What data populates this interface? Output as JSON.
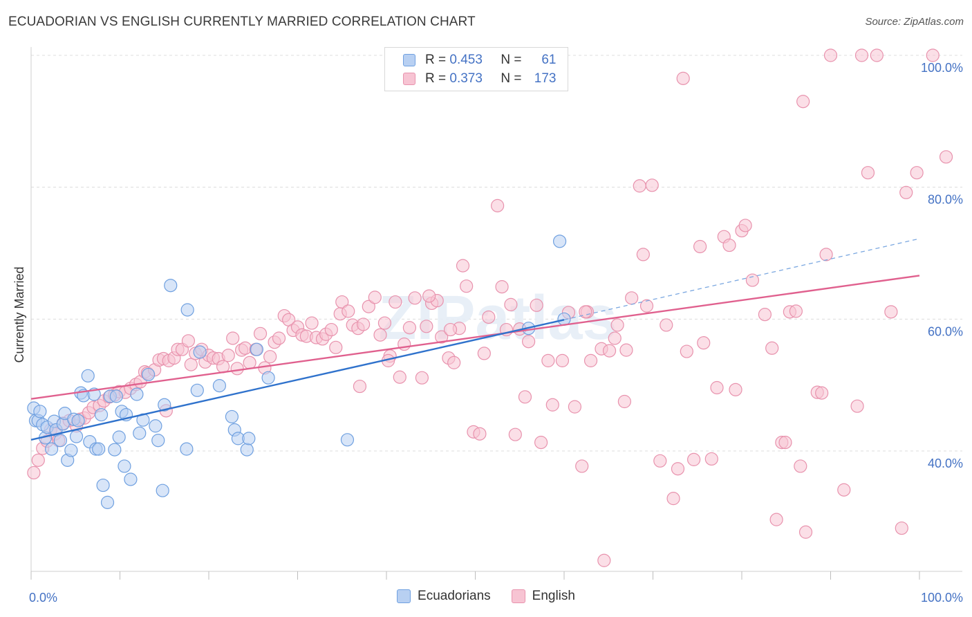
{
  "title": "ECUADORIAN VS ENGLISH CURRENTLY MARRIED CORRELATION CHART",
  "source": "Source: ZipAtlas.com",
  "watermark": "ZIPatlas",
  "legend": {
    "rows": [
      {
        "r_label": "R =",
        "r_value": "0.453",
        "n_label": "N =",
        "n_value": "61"
      },
      {
        "r_label": "R =",
        "r_value": "0.373",
        "n_label": "N =",
        "n_value": "173"
      }
    ]
  },
  "bottom_legend": [
    "Ecuadorians",
    "English"
  ],
  "chart_data": {
    "type": "scatter",
    "title": "ECUADORIAN VS ENGLISH CURRENTLY MARRIED CORRELATION CHART",
    "xlabel": "",
    "ylabel": "Currently Married",
    "xlim": [
      0,
      100
    ],
    "ylim": [
      20,
      102
    ],
    "x_tick_labels": [
      "0.0%",
      "100.0%"
    ],
    "y_ticks": [
      40,
      60,
      80,
      100
    ],
    "y_tick_labels": [
      "40.0%",
      "60.0%",
      "80.0%",
      "100.0%"
    ],
    "grid": true,
    "legend_position": "top-center",
    "series": [
      {
        "name": "Ecuadorians",
        "color": "#6fa0e0",
        "fill": "#b8d0f2",
        "trend": {
          "x": [
            0,
            60
          ],
          "y": [
            41.7,
            59.9
          ],
          "dashed_to": null
        },
        "points": [
          [
            0.3,
            46.5
          ],
          [
            0.5,
            44.6
          ],
          [
            0.8,
            44.6
          ],
          [
            1.0,
            46.0
          ],
          [
            1.3,
            44.0
          ],
          [
            1.6,
            42.0
          ],
          [
            1.8,
            43.6
          ],
          [
            2.3,
            40.3
          ],
          [
            2.6,
            44.5
          ],
          [
            2.8,
            43.2
          ],
          [
            3.3,
            41.6
          ],
          [
            3.6,
            44.1
          ],
          [
            3.8,
            45.7
          ],
          [
            4.1,
            38.6
          ],
          [
            4.5,
            40.1
          ],
          [
            4.8,
            44.8
          ],
          [
            5.1,
            42.2
          ],
          [
            5.3,
            44.6
          ],
          [
            5.6,
            48.8
          ],
          [
            5.9,
            48.4
          ],
          [
            6.4,
            51.4
          ],
          [
            6.6,
            41.4
          ],
          [
            7.1,
            48.6
          ],
          [
            7.3,
            40.3
          ],
          [
            7.6,
            40.3
          ],
          [
            7.9,
            45.5
          ],
          [
            8.1,
            34.8
          ],
          [
            8.6,
            32.2
          ],
          [
            8.9,
            48.3
          ],
          [
            9.4,
            40.2
          ],
          [
            9.6,
            48.3
          ],
          [
            9.9,
            42.1
          ],
          [
            10.2,
            46.0
          ],
          [
            10.5,
            37.7
          ],
          [
            10.7,
            45.5
          ],
          [
            11.2,
            35.7
          ],
          [
            11.9,
            48.6
          ],
          [
            12.2,
            42.7
          ],
          [
            12.6,
            44.7
          ],
          [
            13.2,
            51.6
          ],
          [
            14.0,
            43.8
          ],
          [
            14.3,
            41.6
          ],
          [
            14.8,
            34.0
          ],
          [
            15.0,
            47.0
          ],
          [
            15.7,
            65.1
          ],
          [
            17.5,
            40.3
          ],
          [
            17.6,
            61.4
          ],
          [
            18.7,
            49.2
          ],
          [
            19.0,
            55.0
          ],
          [
            21.2,
            49.9
          ],
          [
            22.6,
            45.2
          ],
          [
            22.9,
            43.2
          ],
          [
            23.3,
            41.9
          ],
          [
            24.3,
            40.2
          ],
          [
            24.5,
            41.9
          ],
          [
            25.4,
            55.4
          ],
          [
            26.7,
            51.1
          ],
          [
            35.6,
            41.7
          ],
          [
            59.5,
            71.8
          ],
          [
            60.0,
            60.0
          ],
          [
            56.0,
            58.6
          ]
        ]
      },
      {
        "name": "English",
        "color": "#e892ad",
        "fill": "#f7c4d3",
        "trend": {
          "x": [
            0,
            100
          ],
          "y": [
            47.9,
            66.6
          ],
          "dashed_to": null
        },
        "dashed_trend": {
          "x": [
            60,
            100
          ],
          "y": [
            59.9,
            72.2
          ]
        },
        "points": [
          [
            0.3,
            36.7
          ],
          [
            0.8,
            38.6
          ],
          [
            1.3,
            40.4
          ],
          [
            1.8,
            41.5
          ],
          [
            2.2,
            43.2
          ],
          [
            2.7,
            42.6
          ],
          [
            3.1,
            41.6
          ],
          [
            3.6,
            44.2
          ],
          [
            4.3,
            44.6
          ],
          [
            5.1,
            43.8
          ],
          [
            5.5,
            44.8
          ],
          [
            6.0,
            45.0
          ],
          [
            6.5,
            45.8
          ],
          [
            7.0,
            46.6
          ],
          [
            7.7,
            46.9
          ],
          [
            8.2,
            47.6
          ],
          [
            8.8,
            48.2
          ],
          [
            9.4,
            48.5
          ],
          [
            9.9,
            49.0
          ],
          [
            10.6,
            48.9
          ],
          [
            11.2,
            49.5
          ],
          [
            11.8,
            50.1
          ],
          [
            12.3,
            50.5
          ],
          [
            12.8,
            52.0
          ],
          [
            13.1,
            51.8
          ],
          [
            13.9,
            52.3
          ],
          [
            14.4,
            53.8
          ],
          [
            14.9,
            54.0
          ],
          [
            15.5,
            53.7
          ],
          [
            16.1,
            54.1
          ],
          [
            16.5,
            55.4
          ],
          [
            17.0,
            55.4
          ],
          [
            17.7,
            56.7
          ],
          [
            18.0,
            53.1
          ],
          [
            18.5,
            54.8
          ],
          [
            19.2,
            55.4
          ],
          [
            19.6,
            53.5
          ],
          [
            20.0,
            54.5
          ],
          [
            20.5,
            54.1
          ],
          [
            21.1,
            54.0
          ],
          [
            21.6,
            52.8
          ],
          [
            22.2,
            54.5
          ],
          [
            22.7,
            57.1
          ],
          [
            23.2,
            52.5
          ],
          [
            23.7,
            55.3
          ],
          [
            24.1,
            55.6
          ],
          [
            24.6,
            53.4
          ],
          [
            25.3,
            55.4
          ],
          [
            25.8,
            57.8
          ],
          [
            26.3,
            52.6
          ],
          [
            26.9,
            54.3
          ],
          [
            27.4,
            56.5
          ],
          [
            27.9,
            57.1
          ],
          [
            28.5,
            60.5
          ],
          [
            29.0,
            59.9
          ],
          [
            29.5,
            58.3
          ],
          [
            30.0,
            58.8
          ],
          [
            30.5,
            57.6
          ],
          [
            31.0,
            57.4
          ],
          [
            31.6,
            59.4
          ],
          [
            32.1,
            57.2
          ],
          [
            32.8,
            57.0
          ],
          [
            33.2,
            57.7
          ],
          [
            33.8,
            58.4
          ],
          [
            34.3,
            55.7
          ],
          [
            34.8,
            60.8
          ],
          [
            35.0,
            62.6
          ],
          [
            35.7,
            61.2
          ],
          [
            36.2,
            59.1
          ],
          [
            36.8,
            58.6
          ],
          [
            37.4,
            59.2
          ],
          [
            38.0,
            61.9
          ],
          [
            38.7,
            63.3
          ],
          [
            39.3,
            57.6
          ],
          [
            39.8,
            59.4
          ],
          [
            40.4,
            54.4
          ],
          [
            41.0,
            62.6
          ],
          [
            41.5,
            51.2
          ],
          [
            42.0,
            56.2
          ],
          [
            42.6,
            58.7
          ],
          [
            43.2,
            63.2
          ],
          [
            44.0,
            51.1
          ],
          [
            44.5,
            58.9
          ],
          [
            45.1,
            62.4
          ],
          [
            45.7,
            62.8
          ],
          [
            46.2,
            57.3
          ],
          [
            47.0,
            54.1
          ],
          [
            47.6,
            53.4
          ],
          [
            48.2,
            58.6
          ],
          [
            48.6,
            68.1
          ],
          [
            49.0,
            65.0
          ],
          [
            49.8,
            42.9
          ],
          [
            50.5,
            42.6
          ],
          [
            51.0,
            54.8
          ],
          [
            51.5,
            60.3
          ],
          [
            52.5,
            77.2
          ],
          [
            53.0,
            64.9
          ],
          [
            53.5,
            58.4
          ],
          [
            54.0,
            62.2
          ],
          [
            54.5,
            42.5
          ],
          [
            55.0,
            58.5
          ],
          [
            55.6,
            48.2
          ],
          [
            56.0,
            56.6
          ],
          [
            56.9,
            62.1
          ],
          [
            57.4,
            41.3
          ],
          [
            58.2,
            53.7
          ],
          [
            58.7,
            47.0
          ],
          [
            59.8,
            53.7
          ],
          [
            60.5,
            61.0
          ],
          [
            61.2,
            46.7
          ],
          [
            62.0,
            37.7
          ],
          [
            62.6,
            61.1
          ],
          [
            63.0,
            53.7
          ],
          [
            64.2,
            55.5
          ],
          [
            65.1,
            55.2
          ],
          [
            65.7,
            57.1
          ],
          [
            66.0,
            59.1
          ],
          [
            66.8,
            47.5
          ],
          [
            67.6,
            63.2
          ],
          [
            68.5,
            80.2
          ],
          [
            68.9,
            69.8
          ],
          [
            69.3,
            62.0
          ],
          [
            69.9,
            80.3
          ],
          [
            70.8,
            38.5
          ],
          [
            71.5,
            59.1
          ],
          [
            72.3,
            32.8
          ],
          [
            72.8,
            37.3
          ],
          [
            73.4,
            96.5
          ],
          [
            73.8,
            55.1
          ],
          [
            74.6,
            38.7
          ],
          [
            75.3,
            71.0
          ],
          [
            75.7,
            56.4
          ],
          [
            76.6,
            38.8
          ],
          [
            77.2,
            49.6
          ],
          [
            78.0,
            72.5
          ],
          [
            78.6,
            71.2
          ],
          [
            79.3,
            49.3
          ],
          [
            80.0,
            73.4
          ],
          [
            80.4,
            74.2
          ],
          [
            81.2,
            65.9
          ],
          [
            82.6,
            60.7
          ],
          [
            83.4,
            55.6
          ],
          [
            83.9,
            29.6
          ],
          [
            84.5,
            41.3
          ],
          [
            84.9,
            41.3
          ],
          [
            85.4,
            61.1
          ],
          [
            86.1,
            61.2
          ],
          [
            86.6,
            37.7
          ],
          [
            86.9,
            93.0
          ],
          [
            87.2,
            27.7
          ],
          [
            88.5,
            48.9
          ],
          [
            89.0,
            48.8
          ],
          [
            89.5,
            69.8
          ],
          [
            90.0,
            100
          ],
          [
            91.5,
            34.1
          ],
          [
            93.0,
            46.8
          ],
          [
            93.5,
            100
          ],
          [
            94.2,
            82.2
          ],
          [
            95.2,
            100
          ],
          [
            96.8,
            61.1
          ],
          [
            98.0,
            28.3
          ],
          [
            98.5,
            79.2
          ],
          [
            99.7,
            82.2
          ],
          [
            101.5,
            100
          ],
          [
            103.0,
            84.6
          ],
          [
            64.5,
            23.4
          ],
          [
            62.4,
            61.1
          ],
          [
            67.0,
            55.3
          ],
          [
            44.8,
            63.5
          ],
          [
            47.2,
            58.4
          ],
          [
            40.2,
            53.7
          ],
          [
            37.0,
            49.8
          ],
          [
            15.2,
            46.1
          ]
        ]
      }
    ]
  }
}
